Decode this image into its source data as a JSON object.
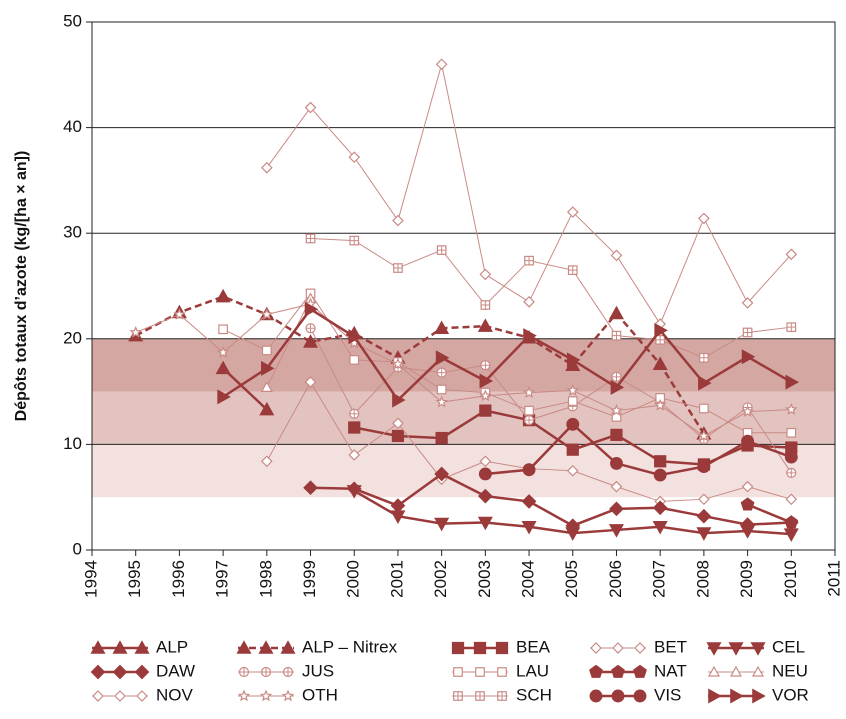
{
  "chart_data": {
    "type": "line",
    "y_label": "Dépôts totaux d’azote (kg/[ha × an])",
    "x": [
      1995,
      1996,
      1997,
      1998,
      1999,
      2000,
      2001,
      2002,
      2003,
      2004,
      2005,
      2006,
      2007,
      2008,
      2009,
      2010
    ],
    "xlim": [
      1994,
      2011
    ],
    "xticks": [
      1994,
      1995,
      1996,
      1997,
      1998,
      1999,
      2000,
      2001,
      2002,
      2003,
      2004,
      2005,
      2006,
      2007,
      2008,
      2009,
      2010,
      2011
    ],
    "ylim": [
      0,
      50
    ],
    "yticks": [
      0,
      10,
      20,
      30,
      40,
      50
    ],
    "grid": true,
    "bands": [
      {
        "range": [
          5,
          10
        ],
        "color": "#f2e1df"
      },
      {
        "range": [
          10,
          15
        ],
        "color": "#e3c3bf"
      },
      {
        "range": [
          15,
          20
        ],
        "color": "#d4a7a2"
      }
    ],
    "series": [
      {
        "name": "ALP",
        "color": "#9b3a3a",
        "marker": "tri-up",
        "filled": true,
        "width": 2.5,
        "dashed": false,
        "values": [
          null,
          null,
          17.2,
          13.3,
          null,
          null,
          null,
          null,
          null,
          null,
          null,
          null,
          null,
          null,
          null,
          null
        ]
      },
      {
        "name": "ALP – Nitrex",
        "color": "#9b3a3a",
        "marker": "tri-up",
        "filled": true,
        "width": 2.5,
        "dashed": true,
        "values": [
          20.3,
          22.5,
          24.0,
          22.3,
          19.7,
          20.5,
          18.2,
          21.0,
          21.2,
          20.1,
          17.5,
          22.4,
          17.6,
          11.0,
          null,
          null
        ]
      },
      {
        "name": "BEA",
        "color": "#9b3a3a",
        "marker": "square",
        "filled": true,
        "width": 2.5,
        "dashed": false,
        "values": [
          null,
          null,
          null,
          null,
          null,
          11.6,
          10.8,
          10.6,
          13.2,
          12.3,
          9.5,
          10.9,
          8.4,
          8.1,
          9.9,
          9.7
        ]
      },
      {
        "name": "BET",
        "color": "#c98a85",
        "marker": "diamond",
        "filled": false,
        "width": 1,
        "dashed": false,
        "values": [
          null,
          null,
          null,
          8.4,
          15.9,
          9.0,
          12.0,
          6.7,
          8.4,
          7.7,
          7.5,
          6.0,
          4.6,
          4.8,
          6.0,
          4.8
        ]
      },
      {
        "name": "CEL",
        "color": "#9b3a3a",
        "marker": "tri-down",
        "filled": true,
        "width": 2.5,
        "dashed": false,
        "values": [
          null,
          null,
          null,
          null,
          null,
          5.6,
          3.2,
          2.5,
          2.6,
          2.2,
          1.6,
          1.9,
          2.2,
          1.6,
          1.8,
          1.5
        ]
      },
      {
        "name": "DAW",
        "color": "#9b3a3a",
        "marker": "diamond",
        "filled": true,
        "width": 2.5,
        "dashed": false,
        "values": [
          null,
          null,
          null,
          null,
          5.9,
          5.8,
          4.2,
          7.2,
          5.1,
          4.6,
          2.3,
          3.9,
          4.0,
          3.2,
          2.4,
          2.6
        ]
      },
      {
        "name": "JUS",
        "color": "#c98a85",
        "marker": "circle-plus",
        "filled": false,
        "width": 1,
        "dashed": false,
        "values": [
          null,
          null,
          null,
          null,
          21.0,
          12.9,
          17.3,
          16.8,
          17.5,
          12.3,
          13.6,
          16.4,
          14.0,
          10.5,
          13.5,
          7.3
        ]
      },
      {
        "name": "LAU",
        "color": "#c98a85",
        "marker": "square",
        "filled": false,
        "width": 1,
        "dashed": false,
        "values": [
          null,
          null,
          20.9,
          18.9,
          24.3,
          18.0,
          17.8,
          15.2,
          14.9,
          13.2,
          14.1,
          12.6,
          14.4,
          13.4,
          11.1,
          11.1
        ]
      },
      {
        "name": "NAT",
        "color": "#9b3a3a",
        "marker": "pentagon",
        "filled": true,
        "width": 2.5,
        "dashed": false,
        "values": [
          null,
          null,
          null,
          null,
          null,
          null,
          null,
          null,
          null,
          null,
          null,
          null,
          null,
          null,
          4.3,
          2.6
        ]
      },
      {
        "name": "NEU",
        "color": "#c98a85",
        "marker": "tri-up",
        "filled": false,
        "width": 1,
        "dashed": false,
        "values": [
          null,
          null,
          null,
          15.4,
          23.8,
          null,
          null,
          null,
          null,
          null,
          null,
          null,
          null,
          null,
          null,
          null
        ]
      },
      {
        "name": "NOV",
        "color": "#c98a85",
        "marker": "diamond",
        "filled": false,
        "width": 1,
        "dashed": false,
        "values": [
          null,
          null,
          null,
          36.2,
          41.9,
          37.2,
          31.2,
          46.0,
          26.1,
          23.5,
          32.0,
          27.9,
          21.4,
          31.4,
          23.4,
          28.0
        ]
      },
      {
        "name": "OTH",
        "color": "#c98a85",
        "marker": "star",
        "filled": false,
        "width": 1,
        "dashed": false,
        "values": [
          20.6,
          22.3,
          18.7,
          22.3,
          23.3,
          19.6,
          17.6,
          14.0,
          14.6,
          14.9,
          15.1,
          13.2,
          13.7,
          10.8,
          13.1,
          13.3
        ]
      },
      {
        "name": "SCH",
        "color": "#c98a85",
        "marker": "square-plus",
        "filled": false,
        "width": 1,
        "dashed": false,
        "values": [
          null,
          null,
          null,
          null,
          29.5,
          29.3,
          26.7,
          28.4,
          23.2,
          27.4,
          26.5,
          20.3,
          19.9,
          18.2,
          20.6,
          21.1
        ]
      },
      {
        "name": "VIS",
        "color": "#9b3a3a",
        "marker": "circle",
        "filled": true,
        "width": 2.5,
        "dashed": false,
        "values": [
          null,
          null,
          null,
          null,
          null,
          null,
          null,
          null,
          7.2,
          7.6,
          11.9,
          8.2,
          7.1,
          7.9,
          10.3,
          8.8
        ]
      },
      {
        "name": "VOR",
        "color": "#9b3a3a",
        "marker": "tri-right",
        "filled": true,
        "width": 2.5,
        "dashed": false,
        "values": [
          null,
          null,
          14.5,
          17.2,
          22.8,
          20.2,
          14.2,
          18.2,
          16.0,
          20.3,
          18.0,
          15.4,
          20.8,
          15.8,
          18.3,
          15.9
        ]
      }
    ]
  }
}
